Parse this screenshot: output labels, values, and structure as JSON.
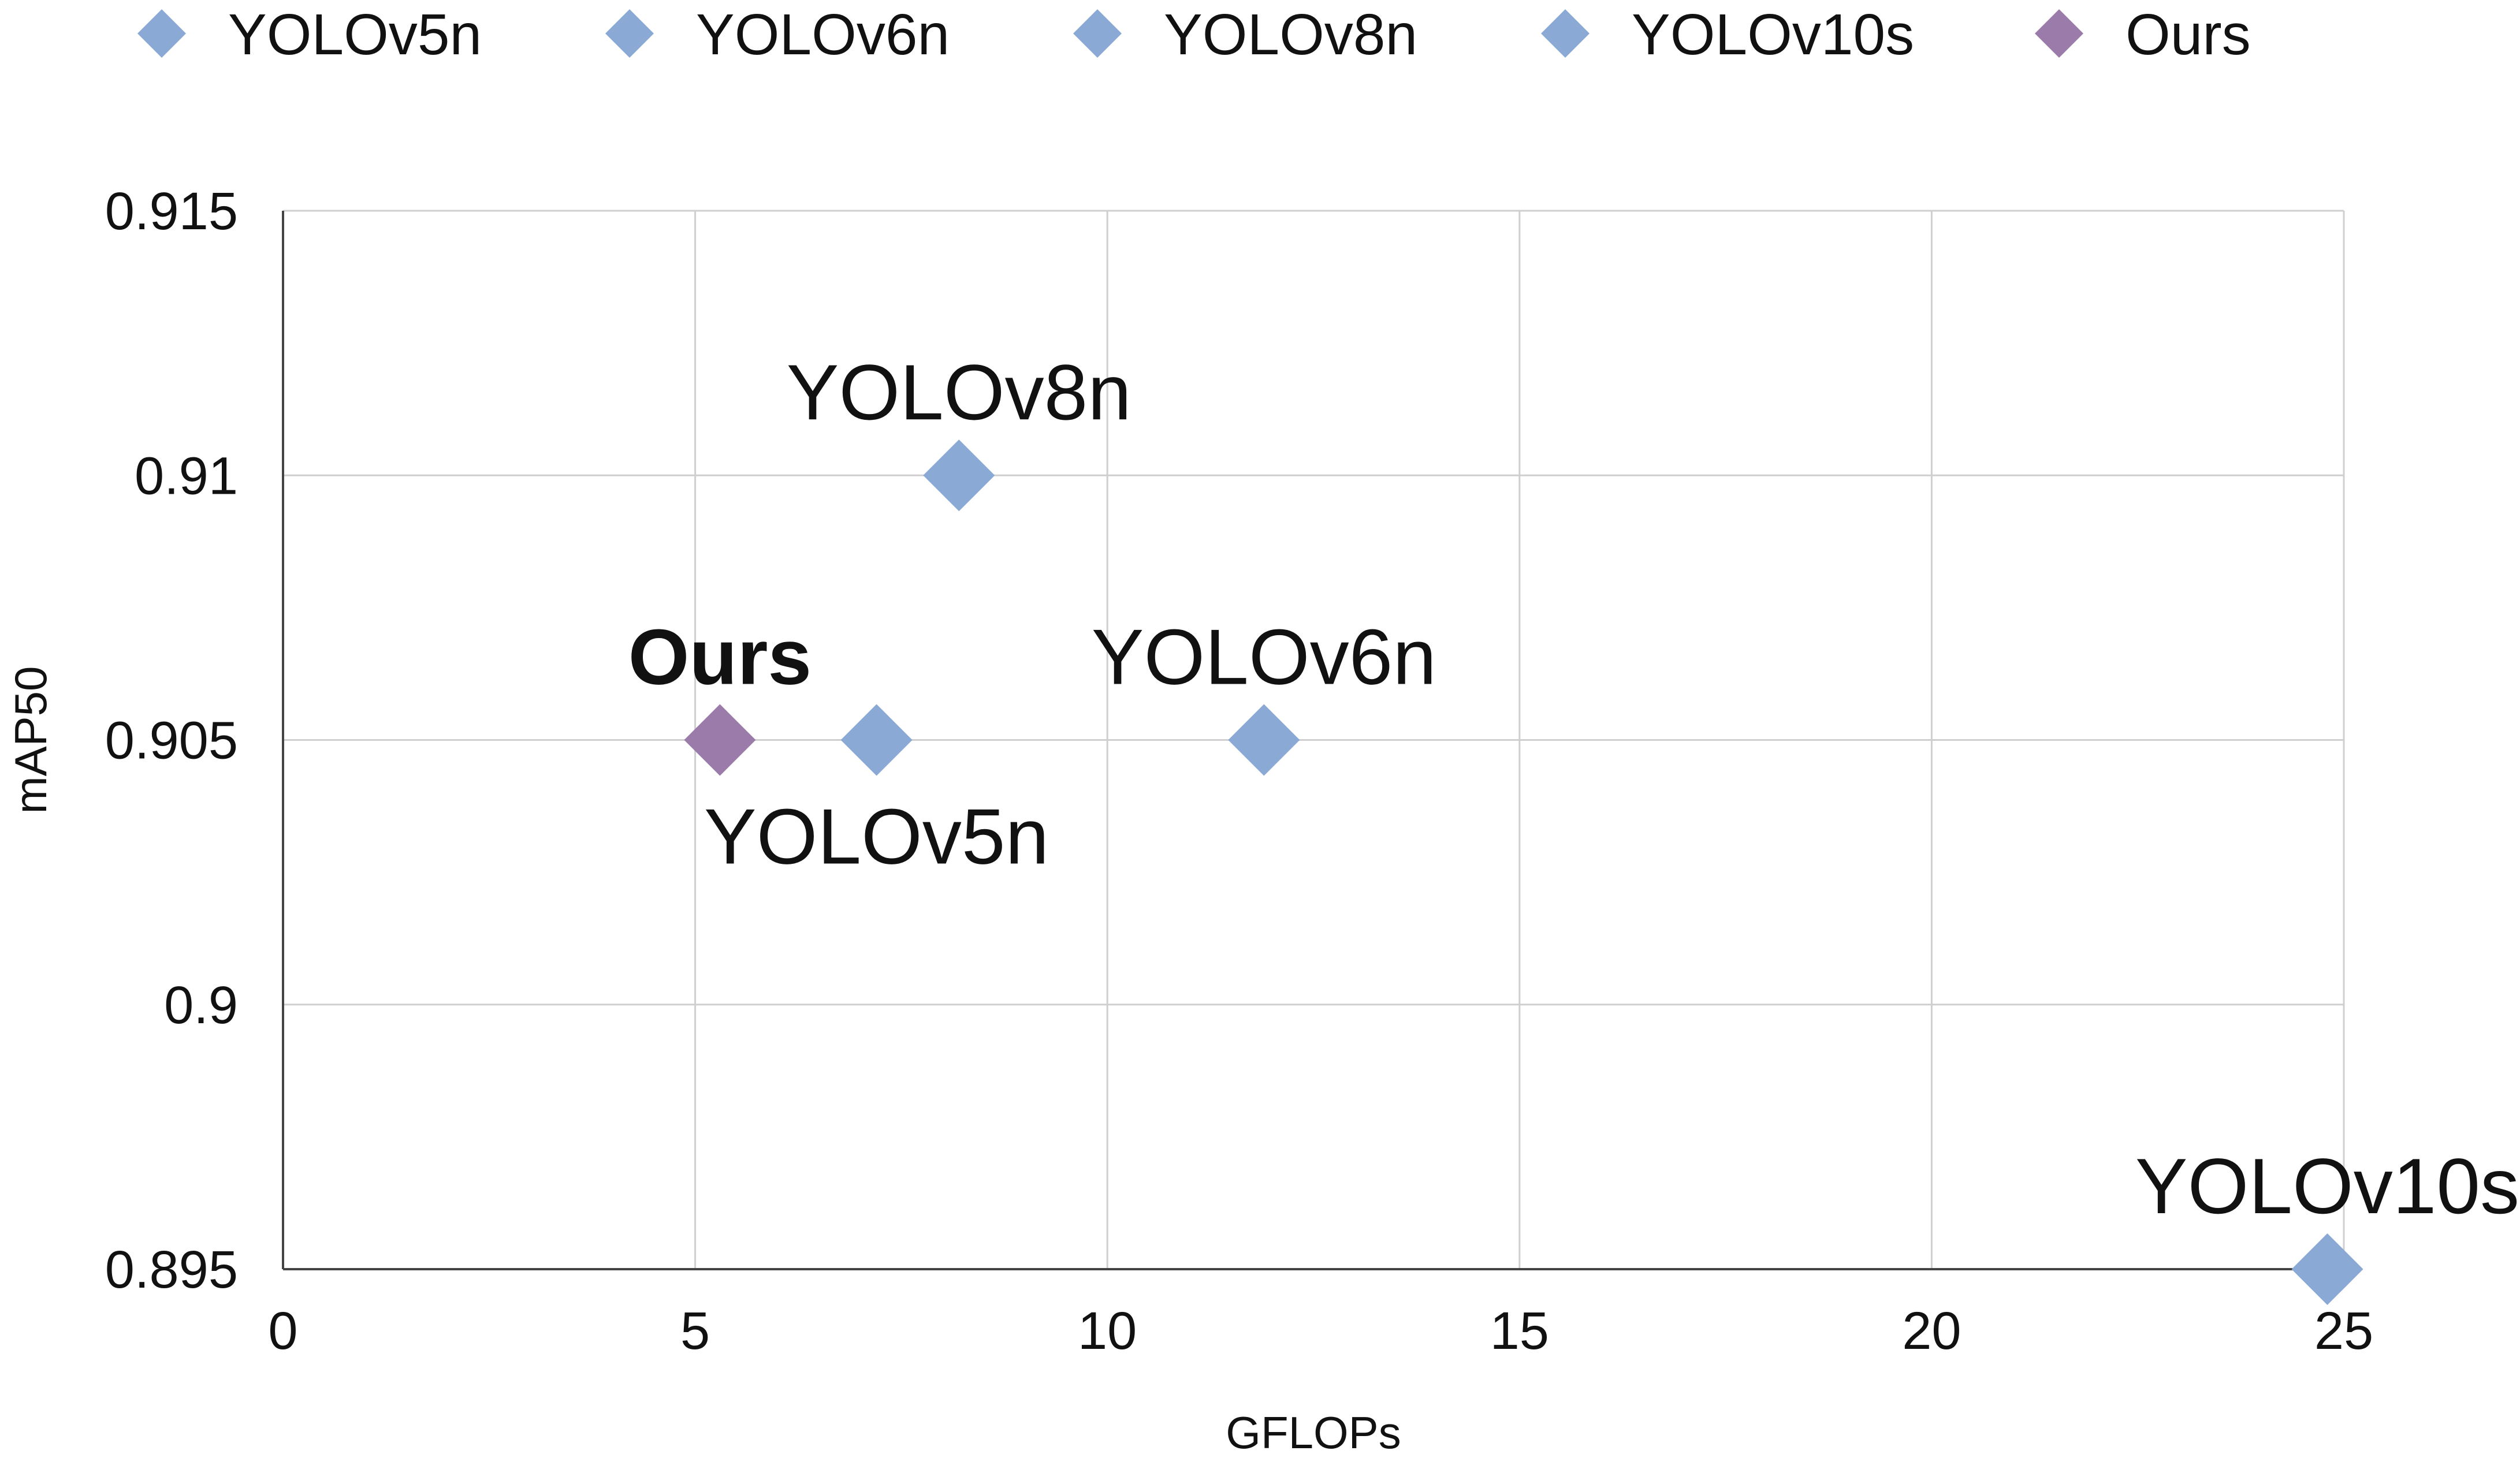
{
  "chart_data": {
    "type": "scatter",
    "title": "",
    "xlabel": "GFLOPs",
    "ylabel": "mAP50",
    "xlim": [
      0,
      25
    ],
    "ylim": [
      0.895,
      0.915
    ],
    "x_ticks": [
      "0",
      "5",
      "10",
      "15",
      "20",
      "25"
    ],
    "y_ticks": [
      "0.895",
      "0.9",
      "0.905",
      "0.91",
      "0.915"
    ],
    "grid": true,
    "legend_position": "top",
    "series": [
      {
        "name": "YOLOv5n",
        "x": 7.2,
        "y": 0.905,
        "color": "#8aa9d5",
        "point_label": "YOLOv5n",
        "label_position": "below",
        "label_bold": false
      },
      {
        "name": "YOLOv6n",
        "x": 11.9,
        "y": 0.905,
        "color": "#8aa9d5",
        "point_label": "YOLOv6n",
        "label_position": "above",
        "label_bold": false
      },
      {
        "name": "YOLOv8n",
        "x": 8.2,
        "y": 0.91,
        "color": "#8aa9d5",
        "point_label": "YOLOv8n",
        "label_position": "above",
        "label_bold": false
      },
      {
        "name": "YOLOv10s",
        "x": 24.8,
        "y": 0.895,
        "color": "#8aa9d5",
        "point_label": "YOLOv10s",
        "label_position": "above",
        "label_bold": false
      },
      {
        "name": "Ours",
        "x": 5.3,
        "y": 0.905,
        "color": "#9b7ba9",
        "point_label": "Ours",
        "label_position": "above",
        "label_bold": true
      }
    ]
  }
}
